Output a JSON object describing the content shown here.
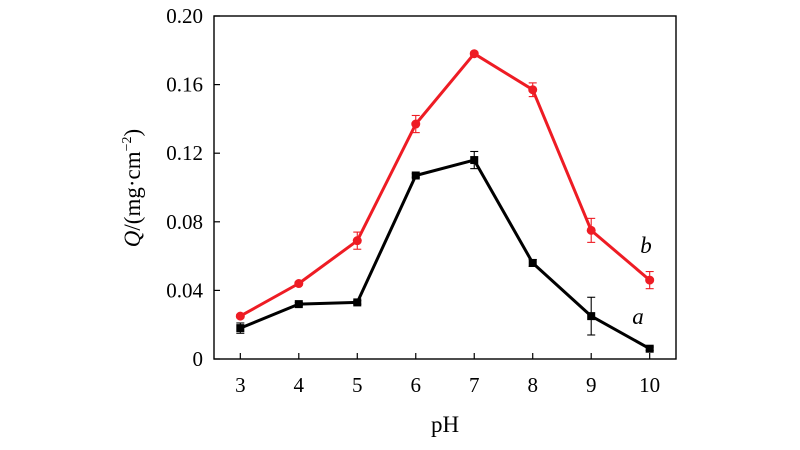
{
  "chart_data": {
    "type": "line",
    "x": [
      3,
      4,
      5,
      6,
      7,
      8,
      9,
      10
    ],
    "xlabel": "pH",
    "ylabel": {
      "italic_part": "Q",
      "rest": "/(mg·cm",
      "superscript": "−2",
      "close": ")"
    },
    "xlim": [
      2.55,
      10.45
    ],
    "ylim": [
      0,
      0.2
    ],
    "x_ticks": [
      "3",
      "4",
      "5",
      "6",
      "7",
      "8",
      "9",
      "10"
    ],
    "y_ticks": [
      {
        "value": 0,
        "label": "0"
      },
      {
        "value": 0.04,
        "label": "0.04"
      },
      {
        "value": 0.08,
        "label": "0.08"
      },
      {
        "value": 0.12,
        "label": "0.12"
      },
      {
        "value": 0.16,
        "label": "0.16"
      },
      {
        "value": 0.2,
        "label": "0.20"
      }
    ],
    "grid": false,
    "series": [
      {
        "name": "a",
        "color": "#000000",
        "marker": "square",
        "values": [
          0.018,
          0.032,
          0.033,
          0.107,
          0.116,
          0.056,
          0.025,
          0.006
        ],
        "errors": [
          0.003,
          0.001,
          0.001,
          0.001,
          0.005,
          0.002,
          0.011,
          0.001
        ]
      },
      {
        "name": "b",
        "color": "#ee1c24",
        "marker": "circle",
        "values": [
          0.025,
          0.044,
          0.069,
          0.137,
          0.178,
          0.157,
          0.075,
          0.046
        ],
        "errors": [
          0.001,
          0.001,
          0.005,
          0.005,
          0.001,
          0.004,
          0.007,
          0.005
        ]
      }
    ]
  }
}
